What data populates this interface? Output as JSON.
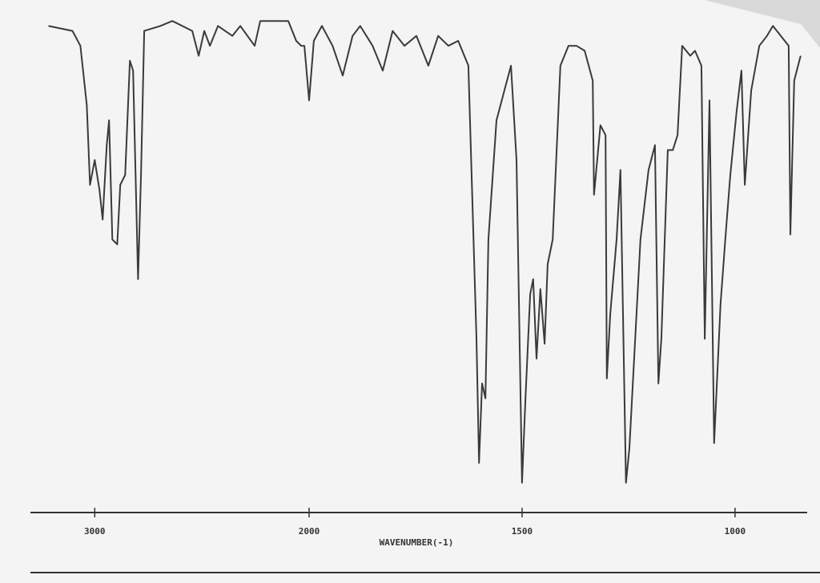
{
  "chart_data": {
    "type": "line",
    "x_label": "WAVENUMBER(-1)",
    "xlim": [
      3300,
      840
    ],
    "xticks": [
      3000,
      2000,
      1500,
      1000
    ],
    "scale_change": 2000,
    "ylim": [
      0,
      100
    ],
    "series": [
      {
        "color": "#3a3a3a",
        "x": [
          3216,
          3104,
          3067,
          3037,
          3022,
          3000,
          2978,
          2963,
          2944,
          2933,
          2918,
          2895,
          2881,
          2858,
          2836,
          2821,
          2798,
          2784,
          2769,
          2694,
          2638,
          2545,
          2515,
          2489,
          2463,
          2425,
          2358,
          2321,
          2254,
          2228,
          2097,
          2060,
          2037,
          2022,
          2000,
          1989,
          1970,
          1945,
          1921,
          1898,
          1880,
          1851,
          1827,
          1804,
          1776,
          1748,
          1720,
          1697,
          1673,
          1650,
          1626,
          1607,
          1601,
          1594,
          1586,
          1579,
          1560,
          1526,
          1513,
          1500,
          1492,
          1481,
          1474,
          1466,
          1457,
          1447,
          1440,
          1428,
          1410,
          1391,
          1372,
          1353,
          1334,
          1331,
          1316,
          1304,
          1301,
          1293,
          1278,
          1269,
          1256,
          1248,
          1222,
          1203,
          1188,
          1180,
          1173,
          1158,
          1146,
          1135,
          1124,
          1105,
          1094,
          1079,
          1071,
          1060,
          1049,
          1034,
          1022,
          1011,
          996,
          985,
          977,
          962,
          943,
          925,
          911,
          874,
          870,
          861,
          846
        ],
        "values": [
          98,
          97,
          94,
          82,
          66,
          71,
          65,
          59,
          74,
          79,
          55,
          54,
          66,
          68,
          91,
          89,
          47,
          68,
          97,
          98,
          99,
          97,
          92,
          97,
          94,
          98,
          96,
          98,
          94,
          99,
          99,
          95,
          94,
          94,
          83,
          95,
          98,
          94,
          88,
          96,
          98,
          94,
          89,
          97,
          94,
          96,
          90,
          96,
          94,
          95,
          90,
          35,
          10,
          26,
          23,
          55,
          79,
          90,
          71,
          6,
          23,
          44,
          47,
          31,
          45,
          34,
          50,
          55,
          90,
          94,
          94,
          93,
          87,
          64,
          78,
          76,
          27,
          40,
          55,
          69,
          6,
          13,
          55,
          69,
          74,
          26,
          35,
          73,
          73,
          76,
          94,
          92,
          93,
          90,
          35,
          83,
          14,
          42,
          56,
          68,
          81,
          89,
          66,
          85,
          94,
          96,
          98,
          94,
          56,
          87,
          92
        ]
      }
    ]
  }
}
